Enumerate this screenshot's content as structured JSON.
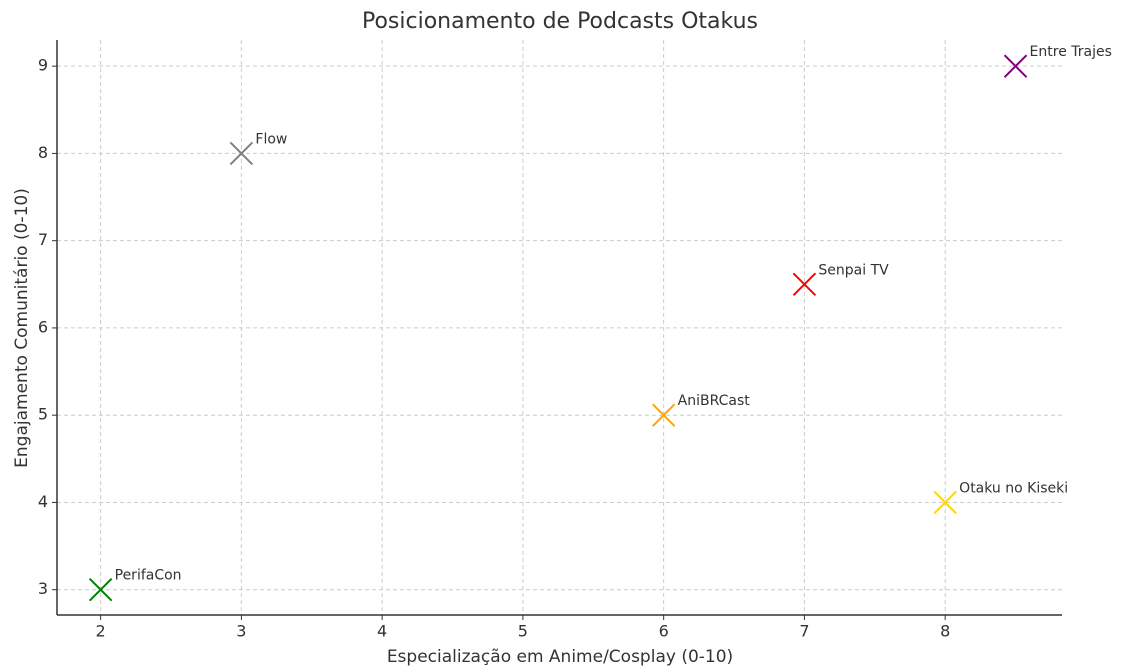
{
  "chart_data": {
    "type": "scatter",
    "title": "Posicionamento de Podcasts Otakus",
    "xlabel": "Especialização em Anime/Cosplay (0-10)",
    "ylabel": "Engajamento Comunitário (0-10)",
    "labels": [
      "PerifaCon",
      "Flow",
      "AniBRCast",
      "Senpai TV",
      "Otaku no Kiseki",
      "Entre Trajes"
    ],
    "x": [
      2,
      3,
      6,
      7,
      8,
      8.5
    ],
    "values": [
      3,
      8,
      5,
      6.5,
      4,
      9
    ],
    "colors": [
      "#008000",
      "#808080",
      "#ffa500",
      "#ff0000",
      "#ffd700",
      "#800080"
    ],
    "xlim": [
      1.69,
      8.83
    ],
    "xticks": [
      2,
      3,
      4,
      5,
      6,
      7,
      8
    ],
    "ylim": [
      2.71,
      9.3
    ],
    "yticks": [
      3,
      4,
      5,
      6,
      7,
      8,
      9
    ],
    "grid": true,
    "marker": "x"
  }
}
